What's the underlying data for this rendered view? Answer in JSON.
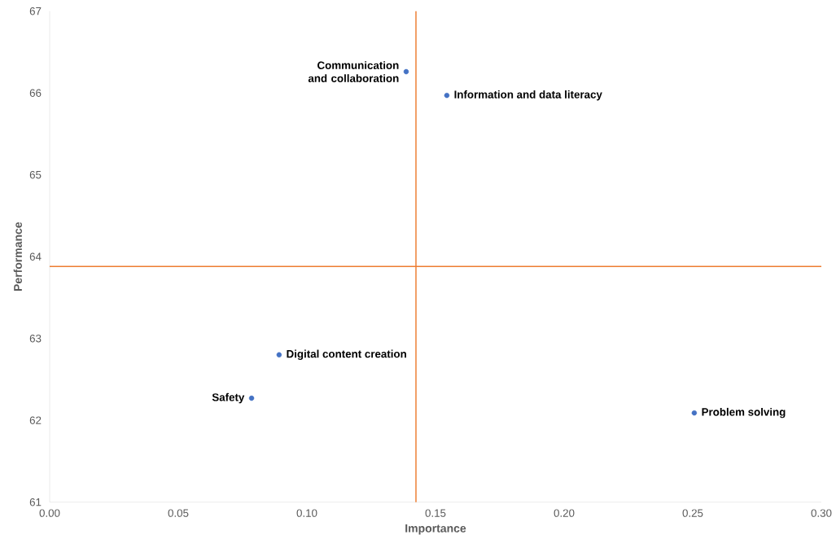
{
  "chart_data": {
    "type": "scatter",
    "xlabel": "Importance",
    "ylabel": "Performance",
    "x": [
      0.1386,
      0.1544,
      0.0892,
      0.0785,
      0.2506
    ],
    "values": [
      66.26,
      65.97,
      62.8,
      62.27,
      62.09
    ],
    "color": "#4472c4",
    "marker": "circle",
    "xlim": [
      0,
      0.3
    ],
    "ylim": [
      61,
      67
    ],
    "xticks": [
      {
        "value": 0,
        "label": "0.00"
      },
      {
        "value": 0.05,
        "label": "0.05"
      },
      {
        "value": 0.1,
        "label": "0.10"
      },
      {
        "value": 0.15,
        "label": "0.15"
      },
      {
        "value": 0.2,
        "label": "0.20"
      },
      {
        "value": 0.25,
        "label": "0.25"
      },
      {
        "value": 0.3,
        "label": "0.30"
      }
    ],
    "yticks": [
      61,
      62,
      63,
      64,
      65,
      66,
      67
    ],
    "ref_lines": [
      {
        "axis": "x",
        "value": 0.1424,
        "color": "#ed7d31"
      },
      {
        "axis": "y",
        "value": 63.88,
        "color": "#ed7d31"
      }
    ],
    "annotations": [
      {
        "text": "Communication and collaboration",
        "x": 0.1386,
        "y": 66.26
      },
      {
        "text": "Information and data literacy",
        "x": 0.1544,
        "y": 65.97
      },
      {
        "text": "Digital content creation",
        "x": 0.0892,
        "y": 62.8
      },
      {
        "text": "Safety",
        "x": 0.0785,
        "y": 62.27
      },
      {
        "text": "Problem solving",
        "x": 0.2506,
        "y": 62.09
      }
    ]
  }
}
